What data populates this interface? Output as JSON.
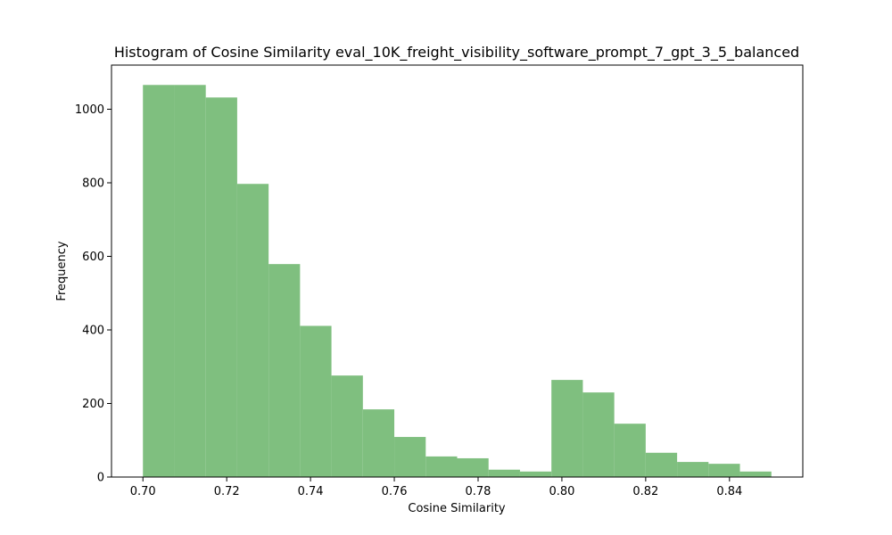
{
  "chart_data": {
    "type": "bar",
    "title": "Histogram of Cosine Similarity eval_10K_freight_visibility_software_prompt_7_gpt_3_5_balanced",
    "xlabel": "Cosine Similarity",
    "ylabel": "Frequency",
    "xlim": [
      0.6925,
      0.8575
    ],
    "ylim": [
      0,
      1120
    ],
    "xticks": [
      0.7,
      0.72,
      0.74,
      0.76,
      0.78,
      0.8,
      0.82,
      0.84
    ],
    "xtick_labels": [
      "0.70",
      "0.72",
      "0.74",
      "0.76",
      "0.78",
      "0.80",
      "0.82",
      "0.84"
    ],
    "yticks": [
      0,
      200,
      400,
      600,
      800,
      1000
    ],
    "ytick_labels": [
      "0",
      "200",
      "400",
      "600",
      "800",
      "1000"
    ],
    "bin_edges": [
      0.7,
      0.7075,
      0.715,
      0.7225,
      0.73,
      0.7375,
      0.745,
      0.7525,
      0.76,
      0.7675,
      0.775,
      0.7825,
      0.79,
      0.7975,
      0.805,
      0.8125,
      0.82,
      0.8275,
      0.835,
      0.8425,
      0.85
    ],
    "values": [
      1066,
      1066,
      1032,
      797,
      579,
      411,
      276,
      184,
      109,
      56,
      51,
      20,
      15,
      264,
      230,
      145,
      66,
      41,
      36,
      15
    ],
    "bar_color": "#7fbf7f",
    "bar_edge_color": "#2e8b2e",
    "grid": false,
    "legend": "none"
  }
}
